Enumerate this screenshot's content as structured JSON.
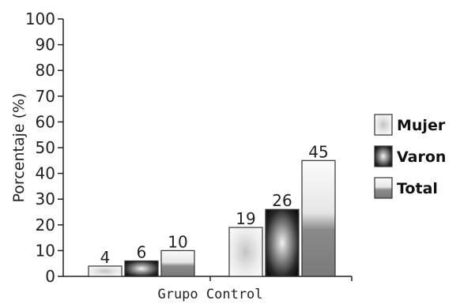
{
  "chart_data": {
    "type": "bar",
    "categories": [
      "",
      "Grupo Control"
    ],
    "series": [
      {
        "name": "Mujer",
        "values": [
          4,
          19
        ]
      },
      {
        "name": "Varon",
        "values": [
          6,
          26
        ]
      },
      {
        "name": "Total",
        "values": [
          10,
          45
        ]
      }
    ],
    "title": "",
    "xlabel": "",
    "ylabel": "Porcentaje (%)",
    "ylim": [
      0,
      100
    ],
    "yticks": [
      0,
      10,
      20,
      30,
      40,
      50,
      60,
      70,
      80,
      90,
      100
    ],
    "legend_position": "right",
    "grid": false,
    "data_labels": true
  }
}
